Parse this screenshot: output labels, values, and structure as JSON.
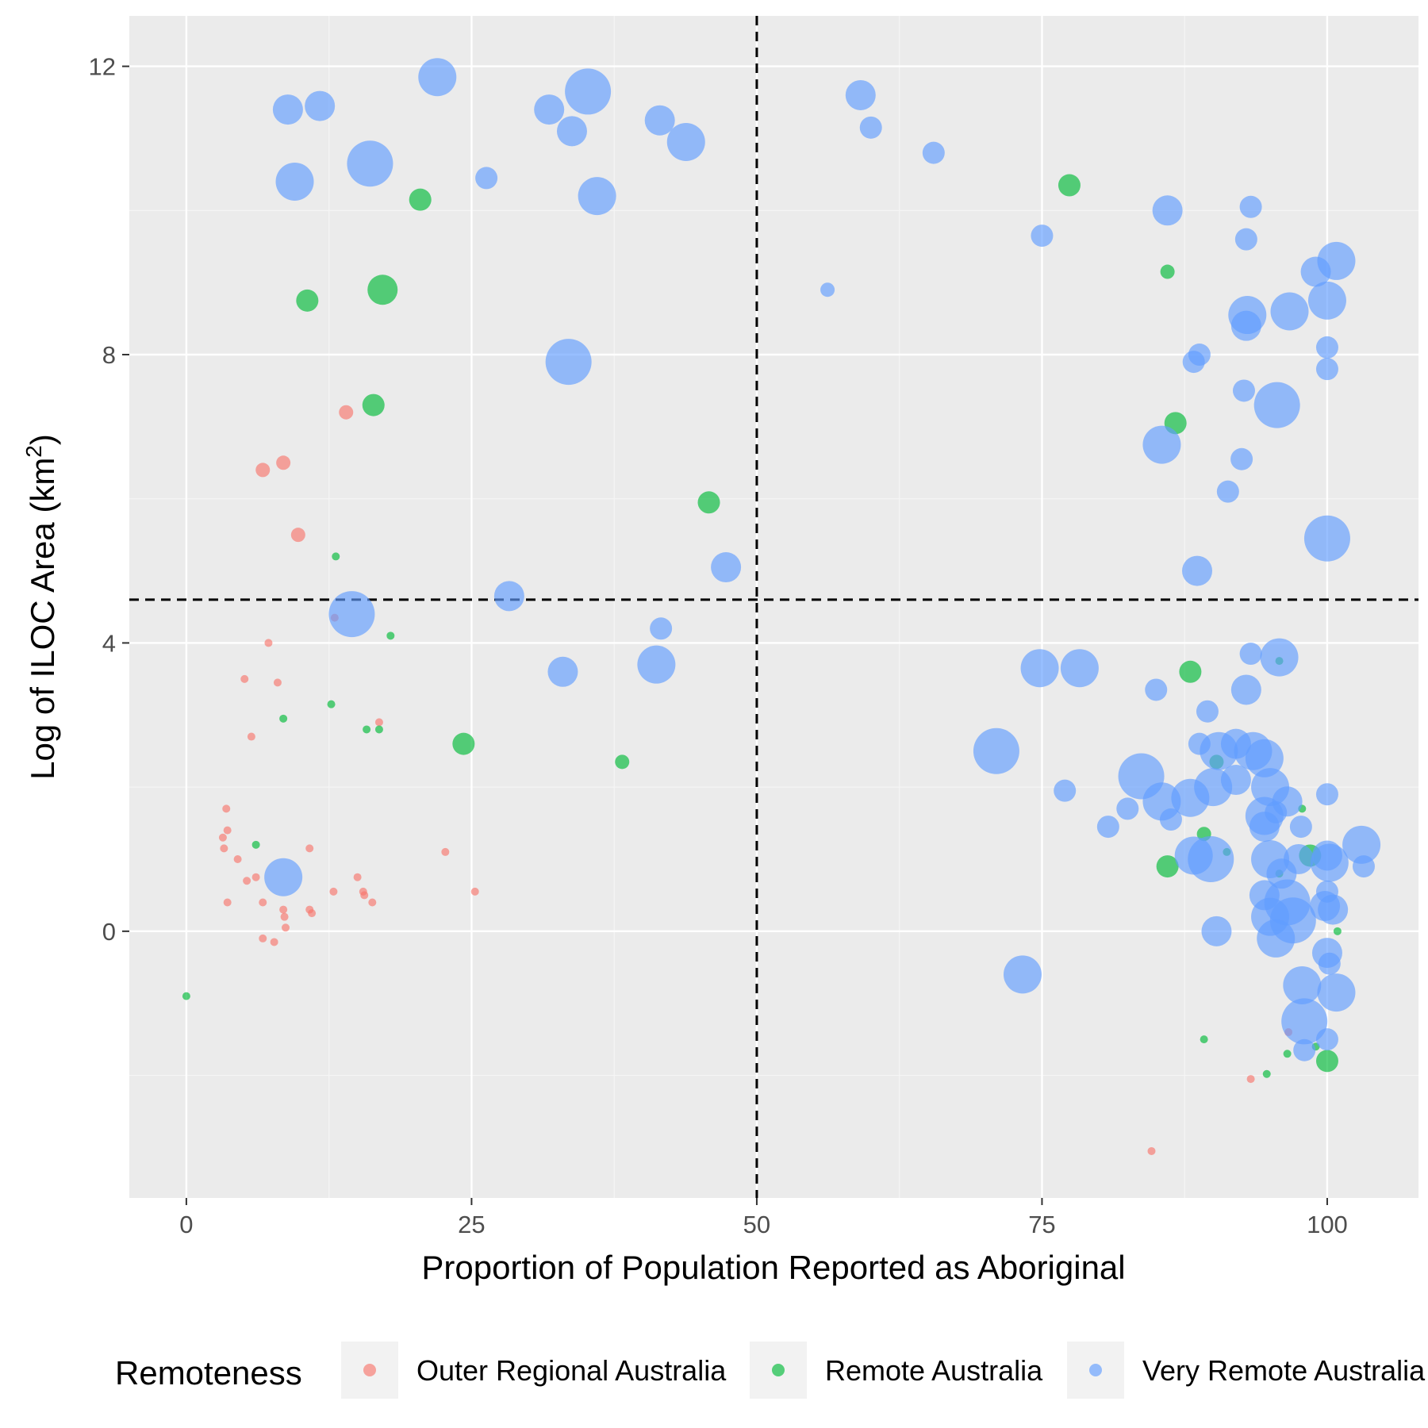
{
  "chart_data": {
    "type": "scatter",
    "title": "",
    "xlabel": "Proportion of Population Reported as Aboriginal",
    "ylabel_main": "Log of ILOC Area (km",
    "ylabel_sup": "2",
    "ylabel_close": ")",
    "xlim": [
      -5,
      108
    ],
    "ylim": [
      -3.7,
      12.7
    ],
    "x_ticks": [
      0,
      25,
      50,
      75,
      100
    ],
    "x_tick_labels": [
      "0",
      "25",
      "50",
      "75",
      "100"
    ],
    "y_ticks": [
      0,
      4,
      8,
      12
    ],
    "y_tick_labels": [
      "0",
      "4",
      "8",
      "12"
    ],
    "grid": true,
    "reference_lines": {
      "x": 50,
      "y": 4.6
    },
    "legend": {
      "title": "Remoteness",
      "position": "bottom",
      "entries": [
        {
          "label": "Outer Regional Australia",
          "color": "#f8766d"
        },
        {
          "label": "Remote Australia",
          "color": "#00ba38"
        },
        {
          "label": "Very Remote Australia",
          "color": "#619cff"
        }
      ]
    },
    "series": [
      {
        "name": "Outer Regional Australia",
        "color": "#f8766d",
        "points": [
          {
            "x": 14,
            "y": 7.2,
            "size": 2
          },
          {
            "x": 8.5,
            "y": 6.5,
            "size": 2
          },
          {
            "x": 6.7,
            "y": 6.4,
            "size": 2
          },
          {
            "x": 9.8,
            "y": 5.5,
            "size": 2
          },
          {
            "x": 7.2,
            "y": 4.0,
            "size": 1
          },
          {
            "x": 5.1,
            "y": 3.5,
            "size": 1
          },
          {
            "x": 8.0,
            "y": 3.45,
            "size": 1
          },
          {
            "x": 5.7,
            "y": 2.7,
            "size": 1
          },
          {
            "x": 16.9,
            "y": 2.9,
            "size": 1
          },
          {
            "x": 3.5,
            "y": 1.7,
            "size": 1
          },
          {
            "x": 3.2,
            "y": 1.3,
            "size": 1
          },
          {
            "x": 3.6,
            "y": 1.4,
            "size": 1
          },
          {
            "x": 3.3,
            "y": 1.15,
            "size": 1
          },
          {
            "x": 10.8,
            "y": 1.15,
            "size": 1
          },
          {
            "x": 22.7,
            "y": 1.1,
            "size": 1
          },
          {
            "x": 4.5,
            "y": 1.0,
            "size": 1
          },
          {
            "x": 6.1,
            "y": 0.75,
            "size": 1
          },
          {
            "x": 5.3,
            "y": 0.7,
            "size": 1
          },
          {
            "x": 15.0,
            "y": 0.75,
            "size": 1
          },
          {
            "x": 12.9,
            "y": 0.55,
            "size": 1
          },
          {
            "x": 15.5,
            "y": 0.55,
            "size": 1
          },
          {
            "x": 25.3,
            "y": 0.55,
            "size": 1
          },
          {
            "x": 15.6,
            "y": 0.5,
            "size": 1
          },
          {
            "x": 3.6,
            "y": 0.4,
            "size": 1
          },
          {
            "x": 6.7,
            "y": 0.4,
            "size": 1
          },
          {
            "x": 16.3,
            "y": 0.4,
            "size": 1
          },
          {
            "x": 8.5,
            "y": 0.3,
            "size": 1
          },
          {
            "x": 10.8,
            "y": 0.3,
            "size": 1
          },
          {
            "x": 8.6,
            "y": 0.2,
            "size": 1
          },
          {
            "x": 11.0,
            "y": 0.25,
            "size": 1
          },
          {
            "x": 8.7,
            "y": 0.05,
            "size": 1
          },
          {
            "x": 6.7,
            "y": -0.1,
            "size": 1
          },
          {
            "x": 7.7,
            "y": -0.15,
            "size": 1
          },
          {
            "x": 13.0,
            "y": 4.35,
            "size": 1
          },
          {
            "x": 96.6,
            "y": -1.4,
            "size": 1
          },
          {
            "x": 93.3,
            "y": -2.05,
            "size": 1
          },
          {
            "x": 84.6,
            "y": -3.05,
            "size": 1
          }
        ]
      },
      {
        "name": "Remote Australia",
        "color": "#00ba38",
        "points": [
          {
            "x": 20.5,
            "y": 10.15,
            "size": 3
          },
          {
            "x": 77.4,
            "y": 10.35,
            "size": 3
          },
          {
            "x": 17.2,
            "y": 8.9,
            "size": 4
          },
          {
            "x": 10.6,
            "y": 8.75,
            "size": 3
          },
          {
            "x": 86.0,
            "y": 9.15,
            "size": 2
          },
          {
            "x": 16.4,
            "y": 7.3,
            "size": 3
          },
          {
            "x": 86.7,
            "y": 7.05,
            "size": 3
          },
          {
            "x": 45.8,
            "y": 5.95,
            "size": 3
          },
          {
            "x": 13.1,
            "y": 5.2,
            "size": 1
          },
          {
            "x": 17.9,
            "y": 4.1,
            "size": 1
          },
          {
            "x": 88.0,
            "y": 3.6,
            "size": 3
          },
          {
            "x": 95.8,
            "y": 3.75,
            "size": 1
          },
          {
            "x": 12.7,
            "y": 3.15,
            "size": 1
          },
          {
            "x": 8.5,
            "y": 2.95,
            "size": 1
          },
          {
            "x": 15.8,
            "y": 2.8,
            "size": 1
          },
          {
            "x": 16.9,
            "y": 2.8,
            "size": 1
          },
          {
            "x": 24.3,
            "y": 2.6,
            "size": 3
          },
          {
            "x": 38.2,
            "y": 2.35,
            "size": 2
          },
          {
            "x": 90.3,
            "y": 2.35,
            "size": 2
          },
          {
            "x": 97.8,
            "y": 1.7,
            "size": 1
          },
          {
            "x": 89.2,
            "y": 1.35,
            "size": 2
          },
          {
            "x": 6.1,
            "y": 1.2,
            "size": 1
          },
          {
            "x": 91.2,
            "y": 1.1,
            "size": 1
          },
          {
            "x": 98.5,
            "y": 1.05,
            "size": 3
          },
          {
            "x": 86.0,
            "y": 0.9,
            "size": 3
          },
          {
            "x": 95.8,
            "y": 0.8,
            "size": 1
          },
          {
            "x": 100.9,
            "y": 0.0,
            "size": 1
          },
          {
            "x": 0,
            "y": -0.9,
            "size": 1
          },
          {
            "x": 89.2,
            "y": -1.5,
            "size": 1
          },
          {
            "x": 99.0,
            "y": -1.6,
            "size": 1
          },
          {
            "x": 96.5,
            "y": -1.7,
            "size": 1
          },
          {
            "x": 100.0,
            "y": -1.8,
            "size": 3
          },
          {
            "x": 94.7,
            "y": -1.98,
            "size": 1
          }
        ]
      },
      {
        "name": "Very Remote Australia",
        "color": "#619cff",
        "points": [
          {
            "x": 22.0,
            "y": 11.85,
            "size": 5
          },
          {
            "x": 8.9,
            "y": 11.4,
            "size": 4
          },
          {
            "x": 11.7,
            "y": 11.45,
            "size": 4
          },
          {
            "x": 35.2,
            "y": 11.65,
            "size": 6
          },
          {
            "x": 31.8,
            "y": 11.4,
            "size": 4
          },
          {
            "x": 33.8,
            "y": 11.1,
            "size": 4
          },
          {
            "x": 41.5,
            "y": 11.25,
            "size": 4
          },
          {
            "x": 43.8,
            "y": 10.95,
            "size": 5
          },
          {
            "x": 59.1,
            "y": 11.6,
            "size": 4
          },
          {
            "x": 60.0,
            "y": 11.15,
            "size": 3
          },
          {
            "x": 65.5,
            "y": 10.8,
            "size": 3
          },
          {
            "x": 9.5,
            "y": 10.4,
            "size": 5
          },
          {
            "x": 16.1,
            "y": 10.65,
            "size": 6
          },
          {
            "x": 26.3,
            "y": 10.45,
            "size": 3
          },
          {
            "x": 36.0,
            "y": 10.2,
            "size": 5
          },
          {
            "x": 86.0,
            "y": 10.0,
            "size": 4
          },
          {
            "x": 93.3,
            "y": 10.05,
            "size": 3
          },
          {
            "x": 75.0,
            "y": 9.65,
            "size": 3
          },
          {
            "x": 92.9,
            "y": 9.6,
            "size": 3
          },
          {
            "x": 100.8,
            "y": 9.3,
            "size": 5
          },
          {
            "x": 99.0,
            "y": 9.15,
            "size": 4
          },
          {
            "x": 56.2,
            "y": 8.9,
            "size": 2
          },
          {
            "x": 100.0,
            "y": 8.75,
            "size": 5
          },
          {
            "x": 93.0,
            "y": 8.55,
            "size": 5
          },
          {
            "x": 96.7,
            "y": 8.6,
            "size": 5
          },
          {
            "x": 92.9,
            "y": 8.4,
            "size": 4
          },
          {
            "x": 33.5,
            "y": 7.9,
            "size": 6
          },
          {
            "x": 88.8,
            "y": 8.0,
            "size": 3
          },
          {
            "x": 88.3,
            "y": 7.9,
            "size": 3
          },
          {
            "x": 100.0,
            "y": 8.1,
            "size": 3
          },
          {
            "x": 100.0,
            "y": 7.8,
            "size": 3
          },
          {
            "x": 92.7,
            "y": 7.5,
            "size": 3
          },
          {
            "x": 95.6,
            "y": 7.3,
            "size": 6
          },
          {
            "x": 85.5,
            "y": 6.75,
            "size": 5
          },
          {
            "x": 92.5,
            "y": 6.55,
            "size": 3
          },
          {
            "x": 91.3,
            "y": 6.1,
            "size": 3
          },
          {
            "x": 100.0,
            "y": 5.45,
            "size": 6
          },
          {
            "x": 47.3,
            "y": 5.05,
            "size": 4
          },
          {
            "x": 88.6,
            "y": 5.0,
            "size": 4
          },
          {
            "x": 28.3,
            "y": 4.65,
            "size": 4
          },
          {
            "x": 14.5,
            "y": 4.4,
            "size": 6
          },
          {
            "x": 41.6,
            "y": 4.2,
            "size": 3
          },
          {
            "x": 41.2,
            "y": 3.7,
            "size": 5
          },
          {
            "x": 33.0,
            "y": 3.6,
            "size": 4
          },
          {
            "x": 74.8,
            "y": 3.65,
            "size": 5
          },
          {
            "x": 78.3,
            "y": 3.65,
            "size": 5
          },
          {
            "x": 93.3,
            "y": 3.85,
            "size": 3
          },
          {
            "x": 95.8,
            "y": 3.8,
            "size": 5
          },
          {
            "x": 85.0,
            "y": 3.35,
            "size": 3
          },
          {
            "x": 92.9,
            "y": 3.35,
            "size": 4
          },
          {
            "x": 89.5,
            "y": 3.05,
            "size": 3
          },
          {
            "x": 71.0,
            "y": 2.5,
            "size": 6
          },
          {
            "x": 77.0,
            "y": 1.95,
            "size": 3
          },
          {
            "x": 83.7,
            "y": 2.15,
            "size": 6
          },
          {
            "x": 90.5,
            "y": 2.5,
            "size": 5
          },
          {
            "x": 92.0,
            "y": 2.6,
            "size": 4
          },
          {
            "x": 93.5,
            "y": 2.5,
            "size": 5
          },
          {
            "x": 94.5,
            "y": 2.4,
            "size": 5
          },
          {
            "x": 88.8,
            "y": 2.6,
            "size": 3
          },
          {
            "x": 90.0,
            "y": 2.0,
            "size": 5
          },
          {
            "x": 92.0,
            "y": 2.1,
            "size": 4
          },
          {
            "x": 95.0,
            "y": 2.0,
            "size": 5
          },
          {
            "x": 100.0,
            "y": 1.9,
            "size": 3
          },
          {
            "x": 82.5,
            "y": 1.7,
            "size": 3
          },
          {
            "x": 85.5,
            "y": 1.8,
            "size": 5
          },
          {
            "x": 88.0,
            "y": 1.85,
            "size": 5
          },
          {
            "x": 96.5,
            "y": 1.8,
            "size": 4
          },
          {
            "x": 86.3,
            "y": 1.55,
            "size": 3
          },
          {
            "x": 80.8,
            "y": 1.45,
            "size": 3
          },
          {
            "x": 94.5,
            "y": 1.6,
            "size": 5
          },
          {
            "x": 95.5,
            "y": 1.65,
            "size": 3
          },
          {
            "x": 97.7,
            "y": 1.45,
            "size": 3
          },
          {
            "x": 94.5,
            "y": 1.45,
            "size": 4
          },
          {
            "x": 88.3,
            "y": 1.05,
            "size": 5
          },
          {
            "x": 89.8,
            "y": 1.0,
            "size": 6
          },
          {
            "x": 95.0,
            "y": 1.0,
            "size": 5
          },
          {
            "x": 97.5,
            "y": 1.0,
            "size": 4
          },
          {
            "x": 100.0,
            "y": 1.05,
            "size": 4
          },
          {
            "x": 100.2,
            "y": 0.95,
            "size": 5
          },
          {
            "x": 103.0,
            "y": 1.2,
            "size": 5
          },
          {
            "x": 103.2,
            "y": 0.9,
            "size": 3
          },
          {
            "x": 96.0,
            "y": 0.8,
            "size": 4
          },
          {
            "x": 100.0,
            "y": 0.55,
            "size": 3
          },
          {
            "x": 94.5,
            "y": 0.5,
            "size": 4
          },
          {
            "x": 96.5,
            "y": 0.4,
            "size": 6
          },
          {
            "x": 99.8,
            "y": 0.35,
            "size": 4
          },
          {
            "x": 100.5,
            "y": 0.3,
            "size": 4
          },
          {
            "x": 95.0,
            "y": 0.2,
            "size": 5
          },
          {
            "x": 97.0,
            "y": 0.15,
            "size": 6
          },
          {
            "x": 90.3,
            "y": 0.0,
            "size": 4
          },
          {
            "x": 95.5,
            "y": -0.1,
            "size": 5
          },
          {
            "x": 100.0,
            "y": -0.3,
            "size": 4
          },
          {
            "x": 100.2,
            "y": -0.45,
            "size": 3
          },
          {
            "x": 73.3,
            "y": -0.6,
            "size": 5
          },
          {
            "x": 97.8,
            "y": -0.75,
            "size": 5
          },
          {
            "x": 100.8,
            "y": -0.85,
            "size": 5
          },
          {
            "x": 98.0,
            "y": -1.25,
            "size": 6
          },
          {
            "x": 100.0,
            "y": -1.5,
            "size": 3
          },
          {
            "x": 98.0,
            "y": -1.65,
            "size": 3
          },
          {
            "x": 8.5,
            "y": 0.75,
            "size": 5
          }
        ]
      }
    ]
  }
}
